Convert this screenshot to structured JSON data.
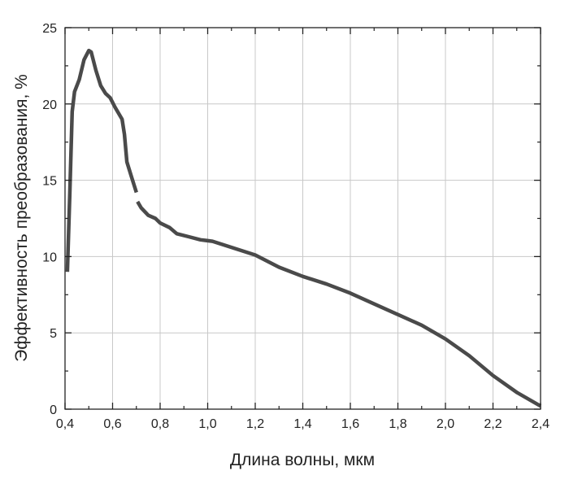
{
  "chart_data": {
    "type": "line",
    "title": "",
    "xlabel": "Длина волны, мкм",
    "ylabel": "Эффективность преобразования, %",
    "xlim": [
      0.4,
      2.4
    ],
    "ylim": [
      0,
      25
    ],
    "grid": true,
    "x_ticks": [
      "0,4",
      "0,6",
      "0,8",
      "1,0",
      "1,2",
      "1,4",
      "1,6",
      "1,8",
      "2,0",
      "2,2",
      "2,4"
    ],
    "y_ticks": [
      "0",
      "5",
      "10",
      "15",
      "20",
      "25"
    ],
    "line_color": "#4a4a4a",
    "series": [
      {
        "name": "segment-1",
        "points": [
          [
            0.41,
            9.0
          ],
          [
            0.42,
            14
          ],
          [
            0.43,
            19.5
          ],
          [
            0.44,
            20.8
          ],
          [
            0.46,
            21.6
          ],
          [
            0.48,
            22.9
          ],
          [
            0.5,
            23.5
          ],
          [
            0.51,
            23.4
          ],
          [
            0.53,
            22.2
          ],
          [
            0.55,
            21.2
          ],
          [
            0.57,
            20.7
          ],
          [
            0.59,
            20.4
          ],
          [
            0.61,
            19.8
          ],
          [
            0.64,
            19.0
          ],
          [
            0.65,
            18.0
          ],
          [
            0.66,
            16.2
          ],
          [
            0.68,
            15.2
          ],
          [
            0.7,
            14.2
          ]
        ]
      },
      {
        "name": "segment-2",
        "points": [
          [
            0.705,
            13.6
          ],
          [
            0.72,
            13.2
          ],
          [
            0.75,
            12.7
          ],
          [
            0.78,
            12.5
          ],
          [
            0.8,
            12.2
          ],
          [
            0.84,
            11.9
          ],
          [
            0.87,
            11.5
          ],
          [
            0.92,
            11.3
          ],
          [
            0.97,
            11.1
          ],
          [
            1.02,
            11.0
          ],
          [
            1.06,
            10.8
          ],
          [
            1.1,
            10.6
          ],
          [
            1.2,
            10.1
          ],
          [
            1.3,
            9.3
          ],
          [
            1.4,
            8.7
          ],
          [
            1.5,
            8.2
          ],
          [
            1.6,
            7.6
          ],
          [
            1.7,
            6.9
          ],
          [
            1.8,
            6.2
          ],
          [
            1.9,
            5.5
          ],
          [
            2.0,
            4.6
          ],
          [
            2.1,
            3.5
          ],
          [
            2.2,
            2.2
          ],
          [
            2.3,
            1.1
          ],
          [
            2.4,
            0.2
          ]
        ]
      }
    ]
  }
}
